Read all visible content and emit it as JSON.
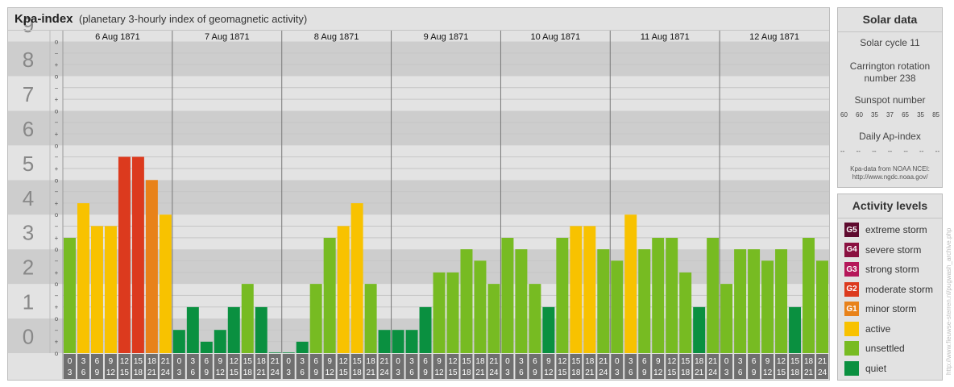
{
  "header": {
    "title": "Kpa-index",
    "subtitle": "(planetary 3-hourly index of geomagnetic activity)"
  },
  "solar": {
    "title": "Solar data",
    "cycle": "Solar cycle 11",
    "carrington_line1": "Carrington rotation",
    "carrington_line2": "number 238",
    "sunspot_label": "Sunspot number",
    "sunspot_values": [
      "60",
      "60",
      "35",
      "37",
      "65",
      "35",
      "85"
    ],
    "ap_label": "Daily Ap-index",
    "ap_values": [
      "--",
      "--",
      "--",
      "--",
      "--",
      "--",
      "--"
    ],
    "source_line1": "Kpa-data from NOAA NCEI:",
    "source_line2": "http://www.ngdc.noaa.gov/"
  },
  "levels": {
    "title": "Activity levels",
    "items": [
      {
        "code": "G5",
        "label": "extreme storm",
        "color": "#5e0a2e"
      },
      {
        "code": "G4",
        "label": "severe storm",
        "color": "#8a1040"
      },
      {
        "code": "G3",
        "label": "strong storm",
        "color": "#b5175a"
      },
      {
        "code": "G2",
        "label": "moderate storm",
        "color": "#dc3a1e"
      },
      {
        "code": "G1",
        "label": "minor storm",
        "color": "#e8821a"
      },
      {
        "code": "",
        "label": "active",
        "color": "#f8c200"
      },
      {
        "code": "",
        "label": "unsettled",
        "color": "#77bb22"
      },
      {
        "code": "",
        "label": "quiet",
        "color": "#0a9040"
      }
    ]
  },
  "credit": "http://www.fieuwse-sterren.nl/pugwash_archive.php",
  "chart_data": {
    "type": "bar",
    "title": "Kpa-index",
    "subtitle": "(planetary 3-hourly index of geomagnetic activity)",
    "days": [
      "6 Aug 1871",
      "7 Aug 1871",
      "8 Aug 1871",
      "9 Aug 1871",
      "10 Aug 1871",
      "11 Aug 1871",
      "12 Aug 1871"
    ],
    "hour_starts": [
      "0",
      "3",
      "6",
      "9",
      "12",
      "15",
      "18",
      "21"
    ],
    "hour_ends": [
      "3",
      "6",
      "9",
      "12",
      "15",
      "18",
      "21",
      "24"
    ],
    "y_ticks": [
      "0",
      "1",
      "2",
      "3",
      "4",
      "5",
      "6",
      "7",
      "8",
      "9"
    ],
    "ylim": [
      0,
      9
    ],
    "sub_ticks": [
      "o",
      "+",
      "−"
    ],
    "values": [
      [
        3.33,
        4.33,
        3.67,
        3.67,
        5.67,
        5.67,
        5.0,
        4.0
      ],
      [
        0.67,
        1.33,
        0.33,
        0.67,
        1.33,
        2.0,
        1.33,
        0.0
      ],
      [
        0.0,
        0.33,
        2.0,
        3.33,
        3.67,
        4.33,
        2.0,
        0.67
      ],
      [
        0.67,
        0.67,
        1.33,
        2.33,
        2.33,
        3.0,
        2.67,
        2.0
      ],
      [
        3.33,
        3.0,
        2.0,
        1.33,
        3.33,
        3.67,
        3.67,
        3.0
      ],
      [
        2.67,
        4.0,
        3.0,
        3.33,
        3.33,
        2.33,
        1.33,
        3.33
      ],
      [
        2.0,
        3.0,
        3.0,
        2.67,
        3.0,
        1.33,
        3.33,
        2.67
      ]
    ],
    "bar_colors": [
      [
        "#77bb22",
        "#f8c200",
        "#f8c200",
        "#f8c200",
        "#dc3a1e",
        "#dc3a1e",
        "#e8821a",
        "#f8c200"
      ],
      [
        "#0a9040",
        "#0a9040",
        "#0a9040",
        "#0a9040",
        "#0a9040",
        "#77bb22",
        "#0a9040",
        "#0a9040"
      ],
      [
        "#0a9040",
        "#0a9040",
        "#77bb22",
        "#77bb22",
        "#f8c200",
        "#f8c200",
        "#77bb22",
        "#0a9040"
      ],
      [
        "#0a9040",
        "#0a9040",
        "#0a9040",
        "#77bb22",
        "#77bb22",
        "#77bb22",
        "#77bb22",
        "#77bb22"
      ],
      [
        "#77bb22",
        "#77bb22",
        "#77bb22",
        "#0a9040",
        "#77bb22",
        "#f8c200",
        "#f8c200",
        "#77bb22"
      ],
      [
        "#77bb22",
        "#f8c200",
        "#77bb22",
        "#77bb22",
        "#77bb22",
        "#77bb22",
        "#0a9040",
        "#77bb22"
      ],
      [
        "#77bb22",
        "#77bb22",
        "#77bb22",
        "#77bb22",
        "#77bb22",
        "#0a9040",
        "#77bb22",
        "#77bb22"
      ]
    ]
  }
}
